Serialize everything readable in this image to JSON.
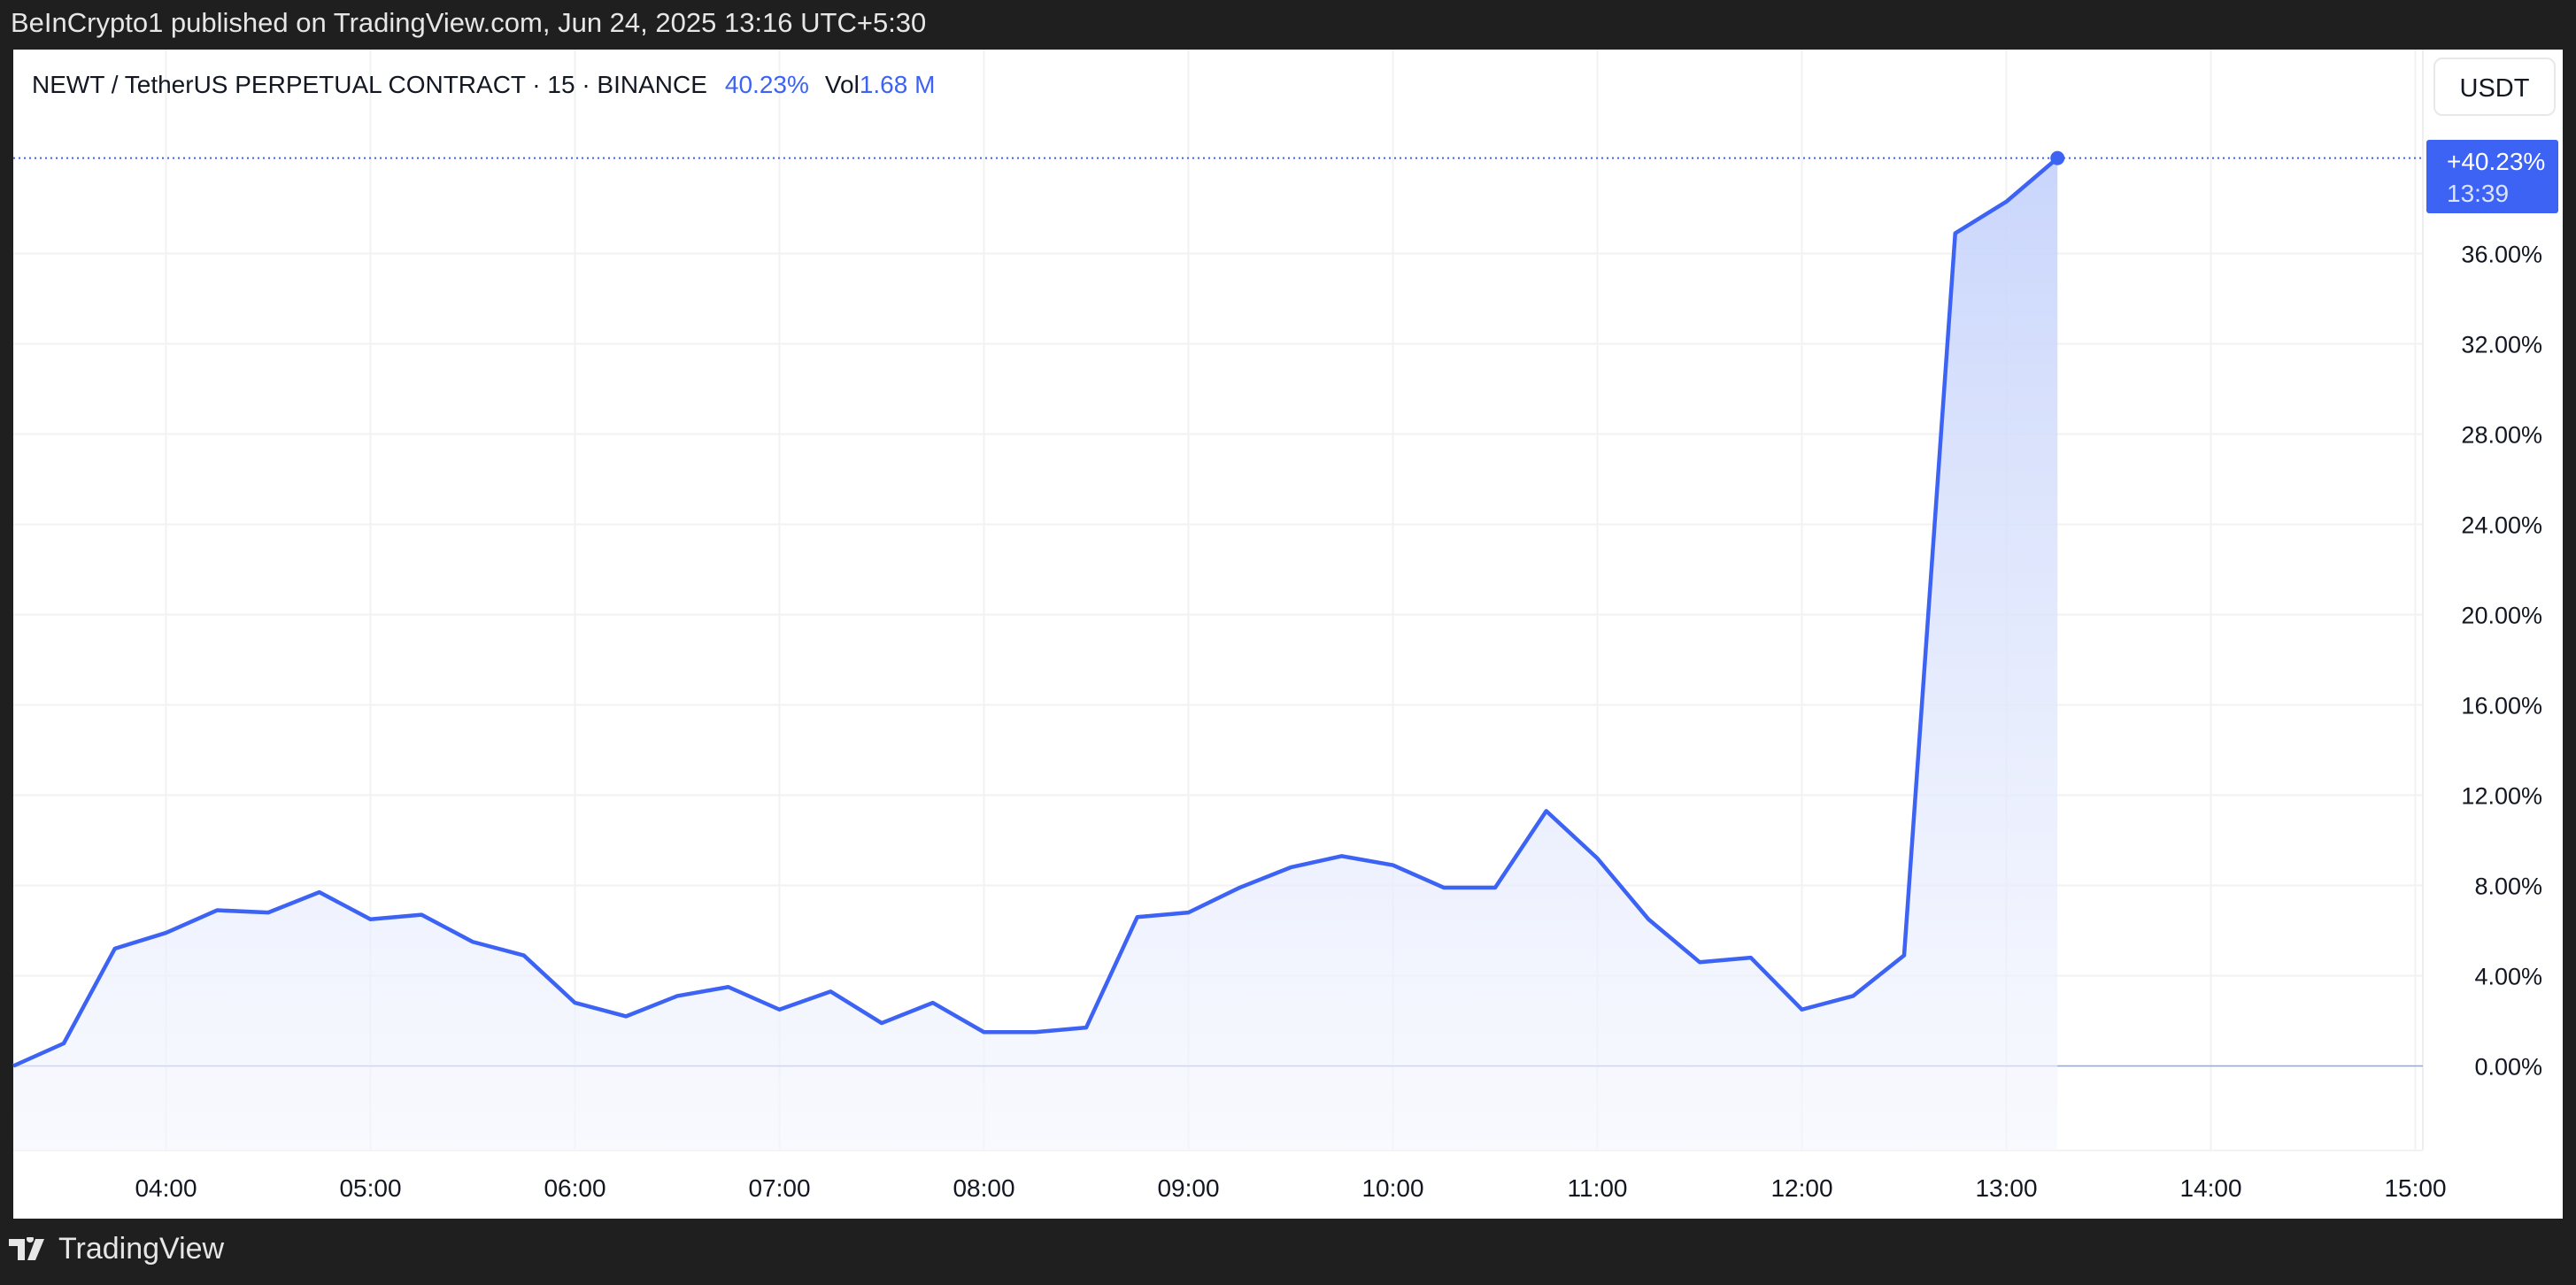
{
  "publish_line": "BeInCrypto1 published on TradingView.com, Jun 24, 2025 13:16 UTC+5:30",
  "legend": {
    "symbol": "NEWT / TetherUS PERPETUAL CONTRACT · 15 · BINANCE",
    "change": "40.23%",
    "vol_label": "Vol",
    "vol_value": "1.68 M"
  },
  "currency_button": "USDT",
  "last_badge": {
    "value": "+40.23%",
    "time": "13:39"
  },
  "footer_logo": "TradingView",
  "colors": {
    "line": "#3d63f5",
    "badge": "#3d63f5",
    "accent_text": "#3d63f5",
    "fill_top": "#c9d5fb"
  },
  "chart_data": {
    "type": "area",
    "x": [
      "03:15",
      "03:30",
      "03:45",
      "04:00",
      "04:15",
      "04:30",
      "04:45",
      "05:00",
      "05:15",
      "05:30",
      "05:45",
      "06:00",
      "06:15",
      "06:30",
      "06:45",
      "07:00",
      "07:15",
      "07:30",
      "07:45",
      "08:00",
      "08:15",
      "08:30",
      "08:45",
      "09:00",
      "09:15",
      "09:30",
      "09:45",
      "10:00",
      "10:15",
      "10:30",
      "10:45",
      "11:00",
      "11:15",
      "11:30",
      "11:45",
      "12:00",
      "12:15",
      "12:30",
      "12:45",
      "13:00",
      "13:15"
    ],
    "values": [
      0,
      1.0,
      5.2,
      5.9,
      6.9,
      6.8,
      7.7,
      6.5,
      6.7,
      5.5,
      4.9,
      2.8,
      2.2,
      3.1,
      3.5,
      2.5,
      3.3,
      1.9,
      2.8,
      1.5,
      1.5,
      1.7,
      6.6,
      6.8,
      7.9,
      8.8,
      9.3,
      8.9,
      7.9,
      7.9,
      11.3,
      9.2,
      6.5,
      4.6,
      4.8,
      2.5,
      3.1,
      4.9,
      36.9,
      38.3,
      40.23
    ],
    "y_ticks": [
      "0.00%",
      "4.00%",
      "8.00%",
      "12.00%",
      "16.00%",
      "20.00%",
      "24.00%",
      "28.00%",
      "32.00%",
      "36.00%"
    ],
    "x_ticks": [
      "04:00",
      "05:00",
      "06:00",
      "07:00",
      "08:00",
      "09:00",
      "10:00",
      "11:00",
      "12:00",
      "13:00",
      "14:00",
      "15:00"
    ],
    "y_unit": "%",
    "grid": true,
    "baseline": 0
  }
}
